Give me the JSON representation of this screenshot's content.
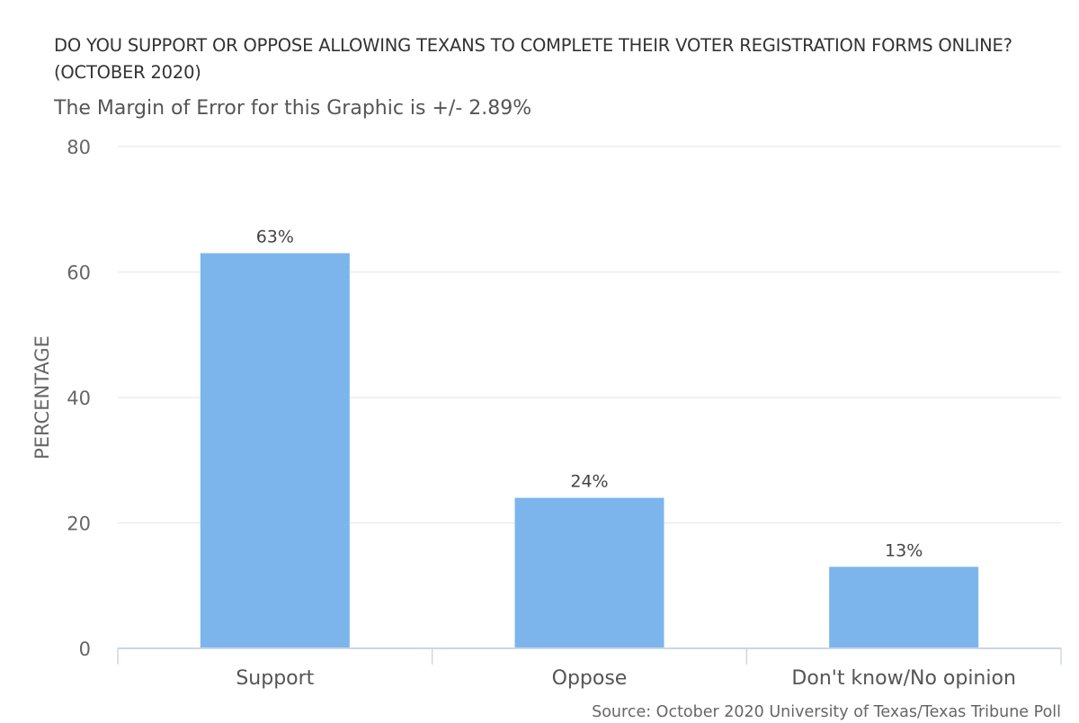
{
  "chart_data": {
    "type": "bar",
    "title": "DO YOU SUPPORT OR OPPOSE ALLOWING TEXANS TO COMPLETE THEIR VOTER REGISTRATION FORMS ONLINE? (OCTOBER 2020)",
    "subtitle": "The Margin of Error for this Graphic is +/- 2.89%",
    "categories": [
      "Support",
      "Oppose",
      "Don't know/No opinion"
    ],
    "values": [
      63,
      24,
      13
    ],
    "data_labels": [
      "63%",
      "24%",
      "13%"
    ],
    "xlabel": "",
    "ylabel": "PERCENTAGE",
    "ylim": [
      0,
      80
    ],
    "yticks": [
      0,
      20,
      40,
      60,
      80
    ],
    "grid": true,
    "bar_color": "#7cb5ec",
    "source": "Source: October 2020 University of Texas/Texas Tribune Poll"
  }
}
